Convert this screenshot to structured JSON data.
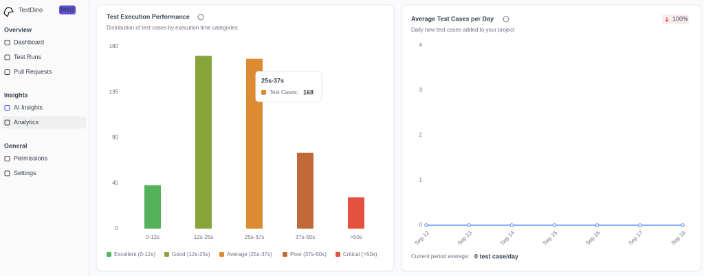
{
  "sidebar": {
    "brand": "TestDino",
    "badge": "PRO",
    "sections": [
      {
        "title": "Overview",
        "items": [
          "Dashboard",
          "Test Runs",
          "Pull Requests"
        ]
      },
      {
        "title": "Insights",
        "items": [
          "AI Insights",
          "Analytics"
        ]
      },
      {
        "title": "General",
        "items": [
          "Permissions",
          "Settings"
        ]
      }
    ]
  },
  "chart_data": [
    {
      "type": "bar",
      "title": "Test Execution Performance",
      "subtitle": "Distribution of test cases by execution time categories",
      "categories": [
        "0-12s",
        "12s-25s",
        "25s-37s",
        "37s-50s",
        ">50s"
      ],
      "values": [
        43,
        171,
        168,
        75,
        31
      ],
      "colors": [
        "#55b15a",
        "#86a43a",
        "#dd8b30",
        "#c2693a",
        "#e5513f"
      ],
      "legend": [
        "Excellent (0-12s)",
        "Good (12s-25s)",
        "Average (25s-37s)",
        "Poor (37s-50s)",
        "Critical (>50s)"
      ],
      "ylim": [
        0,
        180
      ],
      "yticks": [
        0,
        45,
        90,
        135,
        180
      ],
      "tooltip_label": "Test Cases:"
    },
    {
      "type": "line",
      "title": "Average Test Cases per Day",
      "subtitle": "Daily new test cases added to your project",
      "badge": "100%",
      "categories": [
        "Sep 12",
        "Sep 13",
        "Sep 14",
        "Sep 15",
        "Sep 16",
        "Sep 17",
        "Sep 18"
      ],
      "values": [
        0,
        0,
        0,
        0,
        0,
        0,
        0
      ],
      "color": "#3b82f6",
      "ylim": [
        0,
        4
      ],
      "yticks": [
        0,
        1,
        2,
        3,
        4
      ],
      "footer_label": "Current period average:",
      "footer_value": "0 test case/day"
    }
  ]
}
